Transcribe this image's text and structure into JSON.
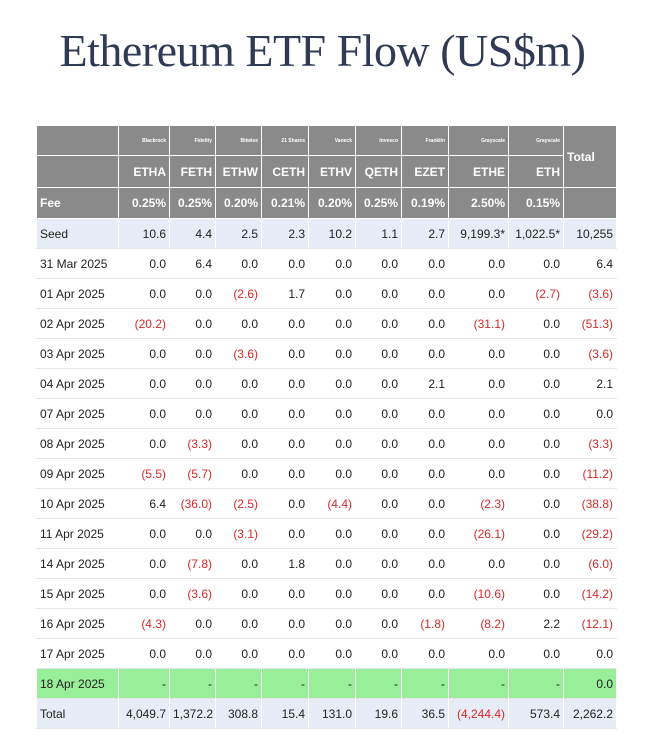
{
  "title": "Ethereum ETF Flow (US$m)",
  "columns": [
    {
      "issuer": "Blackrock",
      "ticker": "ETHA",
      "fee": "0.25%"
    },
    {
      "issuer": "Fidelity",
      "ticker": "FETH",
      "fee": "0.25%"
    },
    {
      "issuer": "Bitwise",
      "ticker": "ETHW",
      "fee": "0.20%"
    },
    {
      "issuer": "21 Shares",
      "ticker": "CETH",
      "fee": "0.21%"
    },
    {
      "issuer": "Vaneck",
      "ticker": "ETHV",
      "fee": "0.20%"
    },
    {
      "issuer": "Invesco",
      "ticker": "QETH",
      "fee": "0.25%"
    },
    {
      "issuer": "Franklin",
      "ticker": "EZET",
      "fee": "0.19%"
    },
    {
      "issuer": "Grayscale",
      "ticker": "ETHE",
      "fee": "2.50%"
    },
    {
      "issuer": "Grayscale",
      "ticker": "ETH",
      "fee": "0.15%"
    }
  ],
  "total_label": "Total",
  "fee_label": "Fee",
  "rows": [
    {
      "date": "Seed",
      "style": "seed",
      "values": [
        "10.6",
        "4.4",
        "2.5",
        "2.3",
        "10.2",
        "1.1",
        "2.7",
        "9,199.3*",
        "1,022.5*",
        "10,255"
      ]
    },
    {
      "date": "31 Mar 2025",
      "style": "",
      "values": [
        "0.0",
        "6.4",
        "0.0",
        "0.0",
        "0.0",
        "0.0",
        "0.0",
        "0.0",
        "0.0",
        "6.4"
      ]
    },
    {
      "date": "01 Apr 2025",
      "style": "",
      "values": [
        "0.0",
        "0.0",
        "(2.6)",
        "1.7",
        "0.0",
        "0.0",
        "0.0",
        "0.0",
        "(2.7)",
        "(3.6)"
      ]
    },
    {
      "date": "02 Apr 2025",
      "style": "",
      "values": [
        "(20.2)",
        "0.0",
        "0.0",
        "0.0",
        "0.0",
        "0.0",
        "0.0",
        "(31.1)",
        "0.0",
        "(51.3)"
      ]
    },
    {
      "date": "03 Apr 2025",
      "style": "",
      "values": [
        "0.0",
        "0.0",
        "(3.6)",
        "0.0",
        "0.0",
        "0.0",
        "0.0",
        "0.0",
        "0.0",
        "(3.6)"
      ]
    },
    {
      "date": "04 Apr 2025",
      "style": "",
      "values": [
        "0.0",
        "0.0",
        "0.0",
        "0.0",
        "0.0",
        "0.0",
        "2.1",
        "0.0",
        "0.0",
        "2.1"
      ]
    },
    {
      "date": "07 Apr 2025",
      "style": "",
      "values": [
        "0.0",
        "0.0",
        "0.0",
        "0.0",
        "0.0",
        "0.0",
        "0.0",
        "0.0",
        "0.0",
        "0.0"
      ]
    },
    {
      "date": "08 Apr 2025",
      "style": "",
      "values": [
        "0.0",
        "(3.3)",
        "0.0",
        "0.0",
        "0.0",
        "0.0",
        "0.0",
        "0.0",
        "0.0",
        "(3.3)"
      ]
    },
    {
      "date": "09 Apr 2025",
      "style": "",
      "values": [
        "(5.5)",
        "(5.7)",
        "0.0",
        "0.0",
        "0.0",
        "0.0",
        "0.0",
        "0.0",
        "0.0",
        "(11.2)"
      ]
    },
    {
      "date": "10 Apr 2025",
      "style": "",
      "values": [
        "6.4",
        "(36.0)",
        "(2.5)",
        "0.0",
        "(4.4)",
        "0.0",
        "0.0",
        "(2.3)",
        "0.0",
        "(38.8)"
      ]
    },
    {
      "date": "11 Apr 2025",
      "style": "",
      "values": [
        "0.0",
        "0.0",
        "(3.1)",
        "0.0",
        "0.0",
        "0.0",
        "0.0",
        "(26.1)",
        "0.0",
        "(29.2)"
      ]
    },
    {
      "date": "14 Apr 2025",
      "style": "",
      "values": [
        "0.0",
        "(7.8)",
        "0.0",
        "1.8",
        "0.0",
        "0.0",
        "0.0",
        "0.0",
        "0.0",
        "(6.0)"
      ]
    },
    {
      "date": "15 Apr 2025",
      "style": "",
      "values": [
        "0.0",
        "(3.6)",
        "0.0",
        "0.0",
        "0.0",
        "0.0",
        "0.0",
        "(10.6)",
        "0.0",
        "(14.2)"
      ]
    },
    {
      "date": "16 Apr 2025",
      "style": "",
      "values": [
        "(4.3)",
        "0.0",
        "0.0",
        "0.0",
        "0.0",
        "0.0",
        "(1.8)",
        "(8.2)",
        "2.2",
        "(12.1)"
      ]
    },
    {
      "date": "17 Apr 2025",
      "style": "",
      "values": [
        "0.0",
        "0.0",
        "0.0",
        "0.0",
        "0.0",
        "0.0",
        "0.0",
        "0.0",
        "0.0",
        "0.0"
      ]
    },
    {
      "date": "18 Apr 2025",
      "style": "hl",
      "values": [
        "-",
        "-",
        "-",
        "-",
        "-",
        "-",
        "-",
        "-",
        "-",
        "0.0"
      ]
    },
    {
      "date": "Total",
      "style": "total-row",
      "values": [
        "4,049.7",
        "1,372.2",
        "308.8",
        "15.4",
        "131.0",
        "19.6",
        "36.5",
        "(4,244.4)",
        "573.4",
        "2,262.2"
      ]
    }
  ],
  "colors": {
    "header_bg": "#8a8a8a",
    "seed_row_bg": "#e8ecf6",
    "highlight_row_bg": "#99ee99",
    "negative_text": "#d62a2a",
    "title_text": "#2f3a56"
  }
}
